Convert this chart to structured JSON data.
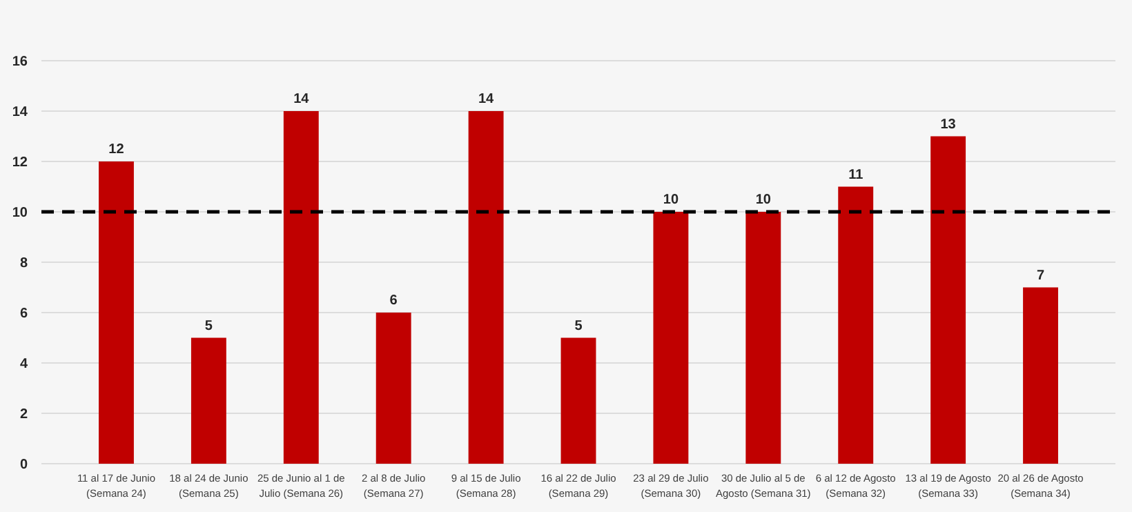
{
  "chart_data": {
    "type": "bar",
    "categories": [
      "11 al 17 de Junio (Semana 24)",
      "18 al 24 de Junio (Semana 25)",
      "25 de Junio al 1 de Julio (Semana 26)",
      "2 al 8 de Julio (Semana 27)",
      "9 al 15 de Julio (Semana 28)",
      "16 al 22 de Julio (Semana 29)",
      "23 al 29 de Julio (Semana 30)",
      "30 de Julio al 5 de Agosto (Semana 31)",
      "6 al 12 de Agosto (Semana 32)",
      "13 al 19 de Agosto (Semana 33)",
      "20 al 26 de Agosto (Semana 34)"
    ],
    "values": [
      12,
      5,
      14,
      6,
      14,
      5,
      10,
      10,
      11,
      13,
      7
    ],
    "color": "#c00000",
    "ylim": [
      0,
      16
    ],
    "yticks": [
      0,
      2,
      4,
      6,
      8,
      10,
      12,
      14,
      16
    ],
    "grid": "y",
    "data_labels": true,
    "ref_lines": [
      {
        "axis": "y",
        "value": 10,
        "color": "#000000",
        "line_style": "dashed"
      }
    ]
  }
}
